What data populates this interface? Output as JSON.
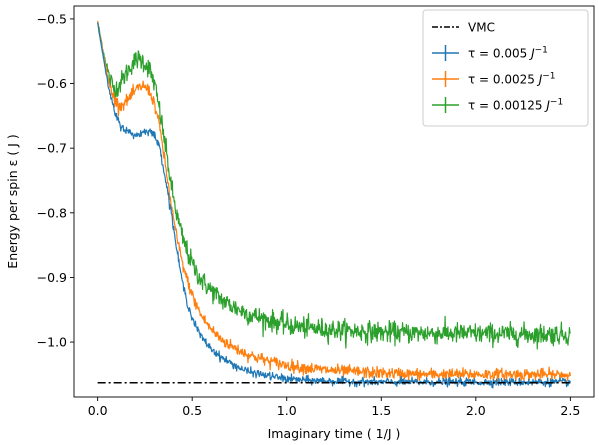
{
  "chart_data": {
    "type": "line",
    "xlabel": "Imaginary time ( 1/J )",
    "ylabel": "Energy per spin ε ( J )",
    "xlim": [
      -0.125,
      2.625
    ],
    "ylim": [
      -1.085,
      -0.48
    ],
    "xticks": [
      0.0,
      0.5,
      1.0,
      1.5,
      2.0,
      2.5
    ],
    "xtick_labels": [
      "0.0",
      "0.5",
      "1.0",
      "1.5",
      "2.0",
      "2.5"
    ],
    "yticks": [
      -0.5,
      -0.6,
      -0.7,
      -0.8,
      -0.9,
      -1.0
    ],
    "ytick_labels": [
      "−0.5",
      "−0.6",
      "−0.7",
      "−0.8",
      "−0.9",
      "−1.0"
    ],
    "grid": false,
    "legend_position": "top-right",
    "reference_line": {
      "name": "VMC",
      "y": -1.063,
      "x_range": [
        0.0,
        2.5
      ],
      "style": "dash-dot",
      "color": "#000000"
    },
    "series": [
      {
        "name": "τ = 0.005 J⁻¹",
        "legend": {
          "prefix": "τ = 0.005 ",
          "unit": "J",
          "exp": "−1"
        },
        "color": "#1f77b4",
        "noise": 0.003,
        "x": [
          0.0,
          0.03,
          0.06,
          0.09,
          0.12,
          0.15,
          0.18,
          0.21,
          0.24,
          0.27,
          0.3,
          0.33,
          0.36,
          0.39,
          0.42,
          0.45,
          0.48,
          0.51,
          0.55,
          0.6,
          0.65,
          0.7,
          0.75,
          0.8,
          0.9,
          1.0,
          1.1,
          1.2,
          1.3,
          1.5,
          1.7,
          2.0,
          2.25,
          2.5
        ],
        "y": [
          -0.505,
          -0.56,
          -0.61,
          -0.645,
          -0.665,
          -0.672,
          -0.678,
          -0.68,
          -0.675,
          -0.672,
          -0.68,
          -0.7,
          -0.75,
          -0.8,
          -0.86,
          -0.91,
          -0.945,
          -0.97,
          -0.993,
          -1.01,
          -1.023,
          -1.032,
          -1.04,
          -1.046,
          -1.052,
          -1.057,
          -1.059,
          -1.06,
          -1.061,
          -1.062,
          -1.062,
          -1.062,
          -1.062,
          -1.062
        ]
      },
      {
        "name": "τ = 0.0025 J⁻¹",
        "legend": {
          "prefix": "τ = 0.0025 ",
          "unit": "J",
          "exp": "−1"
        },
        "color": "#ff7f0e",
        "noise": 0.0045,
        "x": [
          0.0,
          0.03,
          0.06,
          0.09,
          0.12,
          0.15,
          0.18,
          0.21,
          0.24,
          0.27,
          0.3,
          0.33,
          0.36,
          0.39,
          0.42,
          0.45,
          0.48,
          0.51,
          0.55,
          0.6,
          0.65,
          0.7,
          0.75,
          0.8,
          0.9,
          1.0,
          1.1,
          1.2,
          1.3,
          1.5,
          1.7,
          2.0,
          2.25,
          2.5
        ],
        "y": [
          -0.505,
          -0.555,
          -0.6,
          -0.625,
          -0.635,
          -0.628,
          -0.618,
          -0.608,
          -0.603,
          -0.61,
          -0.63,
          -0.67,
          -0.73,
          -0.79,
          -0.84,
          -0.88,
          -0.91,
          -0.935,
          -0.96,
          -0.98,
          -0.995,
          -1.005,
          -1.013,
          -1.02,
          -1.029,
          -1.036,
          -1.04,
          -1.043,
          -1.045,
          -1.048,
          -1.05,
          -1.05,
          -1.05,
          -1.051
        ]
      },
      {
        "name": "τ = 0.00125 J⁻¹",
        "legend": {
          "prefix": "τ = 0.00125 ",
          "unit": "J",
          "exp": "−1"
        },
        "color": "#2ca02c",
        "noise": 0.008,
        "x": [
          0.0,
          0.03,
          0.06,
          0.09,
          0.12,
          0.15,
          0.18,
          0.21,
          0.24,
          0.27,
          0.3,
          0.33,
          0.36,
          0.39,
          0.42,
          0.45,
          0.48,
          0.51,
          0.55,
          0.6,
          0.65,
          0.7,
          0.75,
          0.8,
          0.9,
          1.0,
          1.1,
          1.2,
          1.3,
          1.5,
          1.7,
          2.0,
          2.25,
          2.5
        ],
        "y": [
          -0.505,
          -0.55,
          -0.59,
          -0.61,
          -0.6,
          -0.585,
          -0.57,
          -0.562,
          -0.565,
          -0.575,
          -0.6,
          -0.645,
          -0.7,
          -0.76,
          -0.805,
          -0.84,
          -0.865,
          -0.885,
          -0.905,
          -0.92,
          -0.933,
          -0.943,
          -0.95,
          -0.957,
          -0.966,
          -0.973,
          -0.978,
          -0.98,
          -0.982,
          -0.985,
          -0.986,
          -0.987,
          -0.988,
          -0.988
        ]
      }
    ]
  }
}
